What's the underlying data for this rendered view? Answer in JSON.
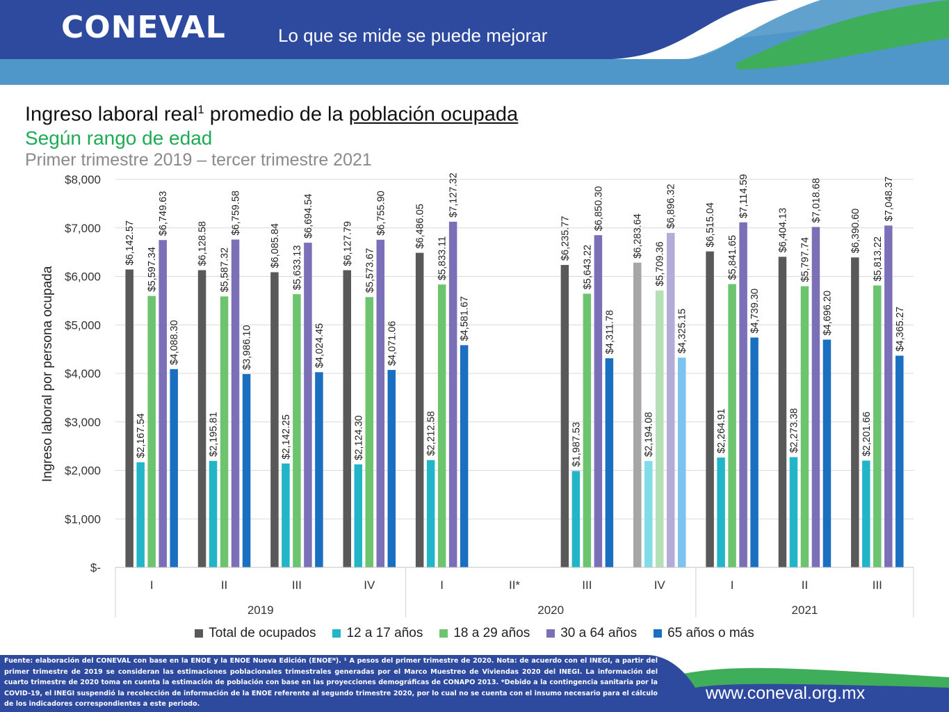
{
  "header": {
    "logo_text": "CONEVAL",
    "tagline": "Lo que se mide se puede mejorar"
  },
  "title": {
    "main_prefix": "Ingreso laboral real",
    "main_sup": "1",
    "main_middle": " promedio de la ",
    "main_underlined": "población ocupada",
    "subtitle": "Según rango de edad",
    "period": "Primer trimestre 2019 – tercer trimestre 2021"
  },
  "chart_data": {
    "type": "bar",
    "ylabel": "Ingreso laboral por persona ocupada",
    "ylim": [
      0,
      8000
    ],
    "yticks": [
      "$-",
      "$1,000",
      "$2,000",
      "$3,000",
      "$4,000",
      "$5,000",
      "$6,000",
      "$7,000",
      "$8,000"
    ],
    "grid": true,
    "legend_position": "bottom",
    "categories": [
      "I",
      "II",
      "III",
      "IV",
      "I",
      "II*",
      "III",
      "IV",
      "I",
      "II",
      "III"
    ],
    "years": [
      {
        "label": "2019",
        "span": 4
      },
      {
        "label": "2020",
        "span": 4
      },
      {
        "label": "2021",
        "span": 3
      }
    ],
    "series": [
      {
        "name": "Total de ocupados",
        "color": "#595959",
        "values": [
          6142.57,
          6128.58,
          6085.84,
          6127.79,
          6486.05,
          null,
          6235.77,
          6283.64,
          6515.04,
          6404.13,
          6390.6
        ],
        "labels": [
          "$6,142.57",
          "$6,128.58",
          "$6,085.84",
          "$6,127.79",
          "$6,486.05",
          "",
          "$6,235.77",
          "$6,283.64",
          "$6,515.04",
          "$6,404.13",
          "$6,390.60"
        ]
      },
      {
        "name": "12 a 17 años",
        "color": "#22b5c8",
        "values": [
          2167.54,
          2195.81,
          2142.25,
          2124.3,
          2212.58,
          null,
          1987.53,
          2194.08,
          2264.91,
          2273.38,
          2201.66
        ],
        "labels": [
          "$2,167.54",
          "$2,195.81",
          "$2,142.25",
          "$2,124.30",
          "$2,212.58",
          "",
          "$1,987.53",
          "$2,194.08",
          "$2,264.91",
          "$2,273.38",
          "$2,201.66"
        ]
      },
      {
        "name": "18 a 29 años",
        "color": "#6cc56e",
        "values": [
          5597.34,
          5587.32,
          5633.13,
          5573.67,
          5833.11,
          null,
          5643.22,
          5709.36,
          5841.65,
          5797.74,
          5813.22
        ],
        "labels": [
          "$5,597.34",
          "$5,587.32",
          "$5,633.13",
          "$5,573.67",
          "$5,833.11",
          "",
          "$5,643.22",
          "$5,709.36",
          "$5,841.65",
          "$5,797.74",
          "$5,813.22"
        ]
      },
      {
        "name": "30 a 64 años",
        "color": "#7b6fb8",
        "values": [
          6749.63,
          6759.58,
          6694.54,
          6755.9,
          7127.32,
          null,
          6850.3,
          6896.32,
          7114.59,
          7018.68,
          7048.37
        ],
        "labels": [
          "$6,749.63",
          "$6,759.58",
          "$6,694.54",
          "$6,755.90",
          "$7,127.32",
          "",
          "$6,850.30",
          "$6,896.32",
          "$7,114.59",
          "$7,018.68",
          "$7,048.37"
        ]
      },
      {
        "name": "65 años o más",
        "color": "#1a6fc0",
        "values": [
          4088.3,
          3986.1,
          4024.45,
          4071.06,
          4581.67,
          null,
          4311.78,
          4325.15,
          4739.3,
          4696.2,
          4365.27
        ],
        "labels": [
          "$4,088.30",
          "$3,986.10",
          "$4,024.45",
          "$4,071.06",
          "$4,581.67",
          "",
          "$4,311.78",
          "$4,325.15",
          "$4,739.30",
          "$4,696.20",
          "$4,365.27"
        ]
      }
    ],
    "highlight": {
      "category_index": 7,
      "colors": [
        "#a6a6a6",
        "#7fdde8",
        "#b4e0b5",
        "#b3acd9",
        "#7cc3f0"
      ]
    }
  },
  "footer": {
    "note": "Fuente: elaboración del CONEVAL con base en la ENOE y la ENOE Nueva Edición (ENOEᴺ). ¹ A pesos del primer trimestre de 2020. Nota: de acuerdo con el INEGI, a partir del primer trimestre de 2019 se consideran las estimaciones poblacionales trimestrales generadas por el Marco Muestreo de Viviendas 2020 del INEGI. La información del cuarto trimestre de 2020 toma en cuenta la estimación de población con base en las proyecciones demográficas de CONAPO 2013. *Debido a la contingencia sanitaria por la COVID-19, el INEGI suspendió la recolección de información de la ENOE referente al segundo trimestre 2020, por lo cual no se cuenta con el insumo necesario para el cálculo de los indicadores correspondientes a este periodo.",
    "url": "www.coneval.org.mx"
  },
  "colors": {
    "header_dark": "#2e4a9e",
    "header_light": "#4f97c9",
    "accent_green": "#3fae5a",
    "footer_blue": "#2e4a9e"
  }
}
